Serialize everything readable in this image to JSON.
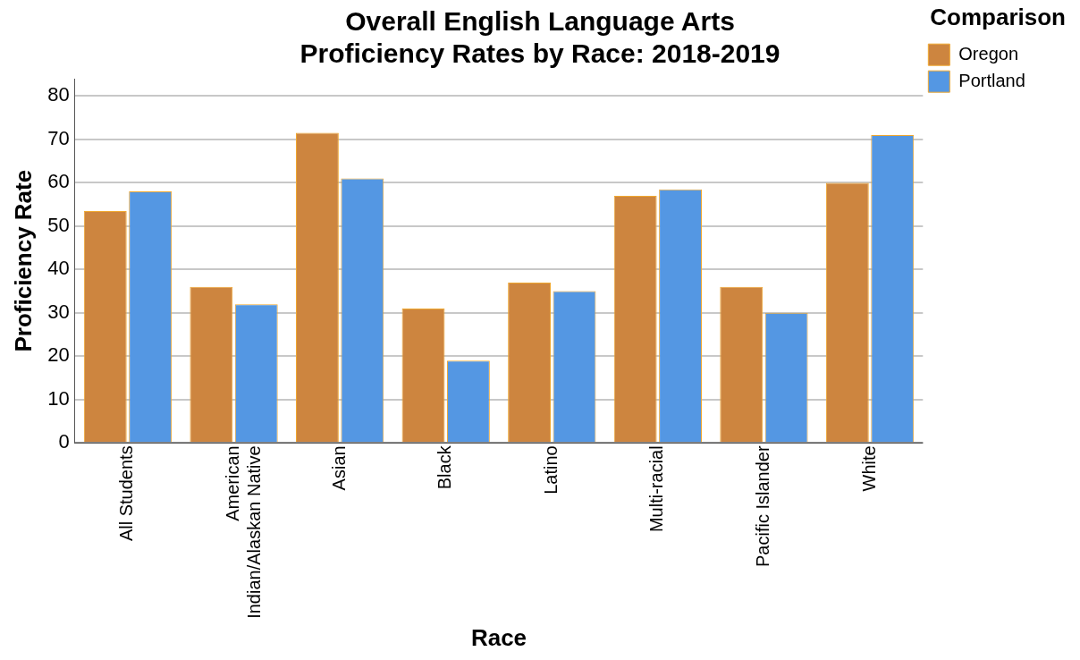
{
  "chart_data": {
    "type": "bar",
    "title": "Overall English Language Arts\nProficiency Rates by Race: 2018-2019",
    "xlabel": "Race",
    "ylabel": "Proficiency Rate",
    "legend_title": "Comparison",
    "legend": "top right",
    "grid": "y",
    "categories": [
      "All Students",
      "American Indian/Alaskan Native",
      "Asian",
      "Black",
      "Latino",
      "Multi-racial",
      "Pacific Islander",
      "White"
    ],
    "series": [
      {
        "name": "Oregon",
        "color": "#cd853f",
        "values": [
          53.5,
          36,
          71.5,
          31,
          37,
          57,
          36,
          60
        ]
      },
      {
        "name": "Portland",
        "color": "#5497e3",
        "values": [
          58,
          32,
          61,
          19,
          35,
          58.5,
          30,
          71
        ]
      }
    ],
    "ylim": [
      0,
      84
    ],
    "yticks": [
      0,
      10,
      20,
      30,
      40,
      50,
      60,
      70,
      80
    ]
  }
}
